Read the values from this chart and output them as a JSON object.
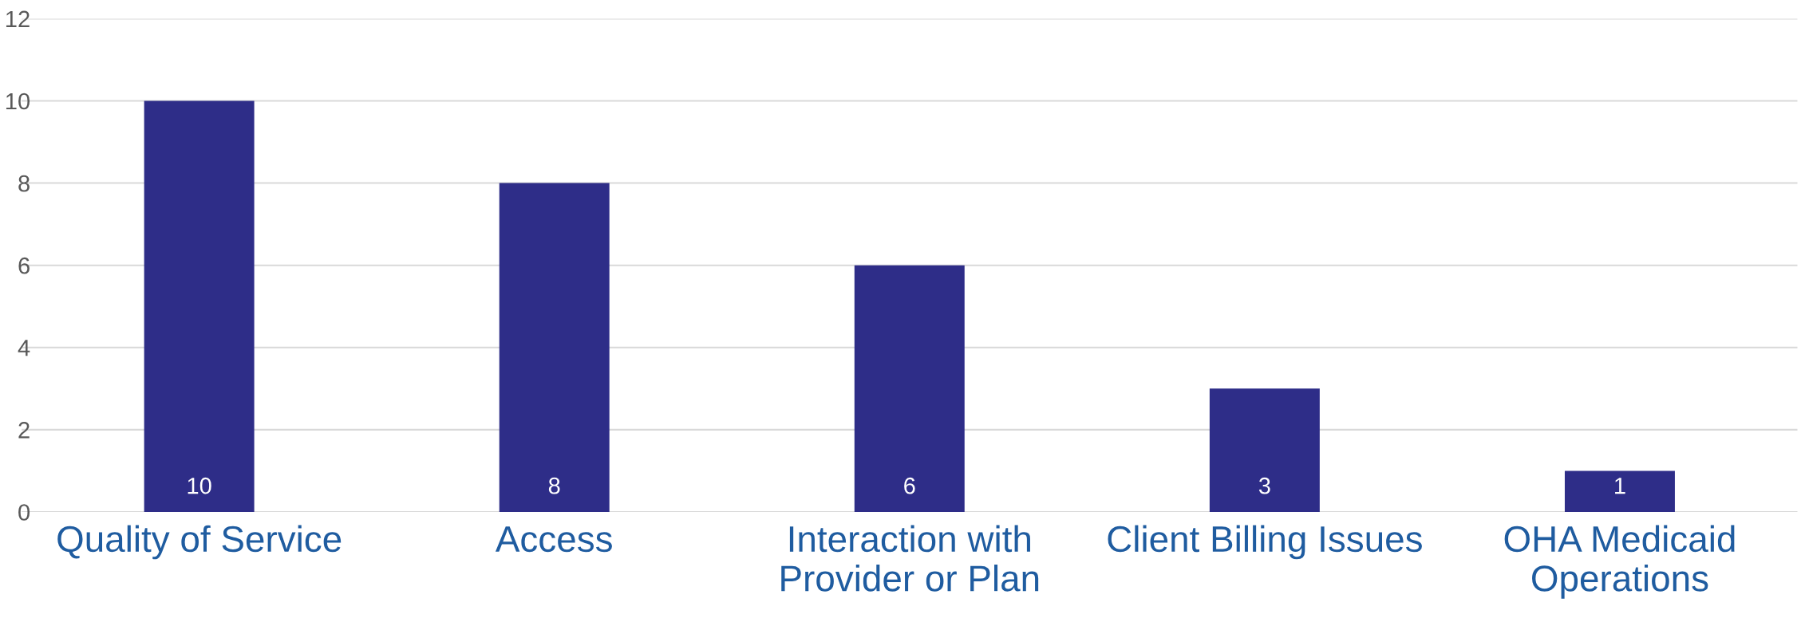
{
  "chart_data": {
    "type": "bar",
    "categories": [
      "Quality of Service",
      "Access",
      "Interaction with\nProvider or Plan",
      "Client Billing Issues",
      "OHA Medicaid\nOperations"
    ],
    "values": [
      10,
      8,
      6,
      3,
      1
    ],
    "color": "#2e2d88",
    "ylim": [
      0,
      12
    ],
    "yticks": [
      0,
      2,
      4,
      6,
      8,
      10,
      12
    ],
    "grid": "y",
    "data_labels": true
  }
}
